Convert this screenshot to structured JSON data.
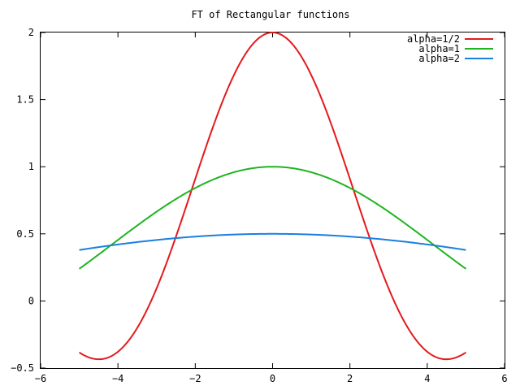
{
  "chart_data": {
    "type": "line",
    "title": "FT of Rectangular functions",
    "xlabel": "",
    "ylabel": "",
    "xlim": [
      -6,
      6
    ],
    "ylim": [
      -0.5,
      2
    ],
    "x_ticks": [
      -6,
      -4,
      -2,
      0,
      2,
      4,
      6
    ],
    "x_tick_labels": [
      "−6",
      "−4",
      "−2",
      "0",
      "2",
      "4",
      "6"
    ],
    "y_ticks": [
      -0.5,
      0,
      0.5,
      1,
      1.5,
      2
    ],
    "y_tick_labels": [
      "−0.5",
      "0",
      "0.5",
      "1",
      "1.5",
      "2"
    ],
    "grid": false,
    "legend_position": "top-right",
    "x_range": [
      -5,
      5
    ],
    "series": [
      {
        "name": "alpha=1/2",
        "alpha": 0.5,
        "color": "#e41a1c"
      },
      {
        "name": "alpha=1",
        "alpha": 1,
        "color": "#1fb41f"
      },
      {
        "name": "alpha=2",
        "alpha": 2,
        "color": "#1a7fe0"
      }
    ]
  }
}
